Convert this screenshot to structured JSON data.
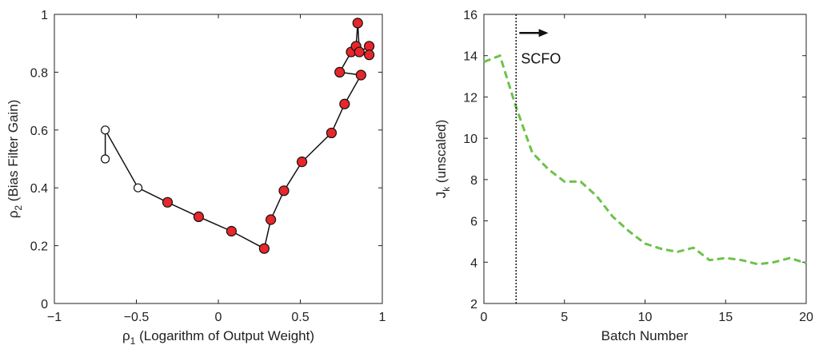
{
  "chart_data": [
    {
      "type": "line",
      "xlabel": "ρ",
      "xlabel_sub": "1",
      "xlabel_rest": " (Logarithm of Output Weight)",
      "ylabel": "ρ",
      "ylabel_sub": "2",
      "ylabel_rest": " (Bias Filter Gain)",
      "xlim": [
        -1,
        1
      ],
      "ylim": [
        0,
        1
      ],
      "xticks": [
        -1,
        -0.5,
        0,
        0.5,
        1
      ],
      "yticks": [
        0,
        0.2,
        0.4,
        0.6,
        0.8,
        1
      ],
      "xtick_labels": [
        "−1",
        "−0.5",
        "0",
        "0.5",
        "1"
      ],
      "ytick_labels": [
        "0",
        "0.2",
        "0.4",
        "0.6",
        "0.8",
        "1"
      ],
      "line_color": "#111111",
      "open_marker_color": "#ffffff",
      "filled_marker_color": "#e8262b",
      "points": [
        {
          "x": -0.69,
          "y": 0.5,
          "filled": false
        },
        {
          "x": -0.69,
          "y": 0.6,
          "filled": false
        },
        {
          "x": -0.49,
          "y": 0.4,
          "filled": false
        },
        {
          "x": -0.31,
          "y": 0.35,
          "filled": true
        },
        {
          "x": -0.12,
          "y": 0.3,
          "filled": true
        },
        {
          "x": 0.08,
          "y": 0.25,
          "filled": true
        },
        {
          "x": 0.28,
          "y": 0.19,
          "filled": true
        },
        {
          "x": 0.32,
          "y": 0.29,
          "filled": true
        },
        {
          "x": 0.4,
          "y": 0.39,
          "filled": true
        },
        {
          "x": 0.51,
          "y": 0.49,
          "filled": true
        },
        {
          "x": 0.69,
          "y": 0.59,
          "filled": true
        },
        {
          "x": 0.77,
          "y": 0.69,
          "filled": true
        },
        {
          "x": 0.87,
          "y": 0.79,
          "filled": true
        },
        {
          "x": 0.74,
          "y": 0.8,
          "filled": true
        },
        {
          "x": 0.81,
          "y": 0.87,
          "filled": true
        },
        {
          "x": 0.84,
          "y": 0.89,
          "filled": true
        },
        {
          "x": 0.85,
          "y": 0.97,
          "filled": true
        },
        {
          "x": 0.86,
          "y": 0.87,
          "filled": true
        },
        {
          "x": 0.92,
          "y": 0.89,
          "filled": true
        },
        {
          "x": 0.92,
          "y": 0.86,
          "filled": true
        }
      ]
    },
    {
      "type": "line",
      "xlabel": "Batch Number",
      "ylabel": "J",
      "ylabel_sub": "k",
      "ylabel_rest": " (unscaled)",
      "xlim": [
        0,
        20
      ],
      "ylim": [
        2,
        16
      ],
      "xticks": [
        0,
        5,
        10,
        15,
        20
      ],
      "yticks": [
        2,
        4,
        6,
        8,
        10,
        12,
        14,
        16
      ],
      "xtick_labels": [
        "0",
        "5",
        "10",
        "15",
        "20"
      ],
      "ytick_labels": [
        "2",
        "4",
        "6",
        "8",
        "10",
        "12",
        "14",
        "16"
      ],
      "series": [
        {
          "name": "J_k",
          "color": "#6cc24a",
          "x": [
            0,
            1,
            2,
            3,
            4,
            5,
            6,
            7,
            8,
            9,
            10,
            11,
            12,
            13,
            14,
            15,
            16,
            17,
            18,
            19,
            20
          ],
          "values": [
            13.7,
            14.0,
            11.5,
            9.3,
            8.5,
            7.9,
            7.9,
            7.2,
            6.2,
            5.5,
            4.9,
            4.65,
            4.5,
            4.7,
            4.1,
            4.2,
            4.1,
            3.9,
            4.0,
            4.2,
            3.95
          ]
        }
      ],
      "vline": {
        "x": 2,
        "color": "#111111"
      },
      "annotation": {
        "text": "SCFO",
        "arrow_from_x": 2.2,
        "arrow_to_x": 4.0,
        "arrow_y": 15.1,
        "text_x": 2.3,
        "text_y": 13.9
      }
    }
  ]
}
